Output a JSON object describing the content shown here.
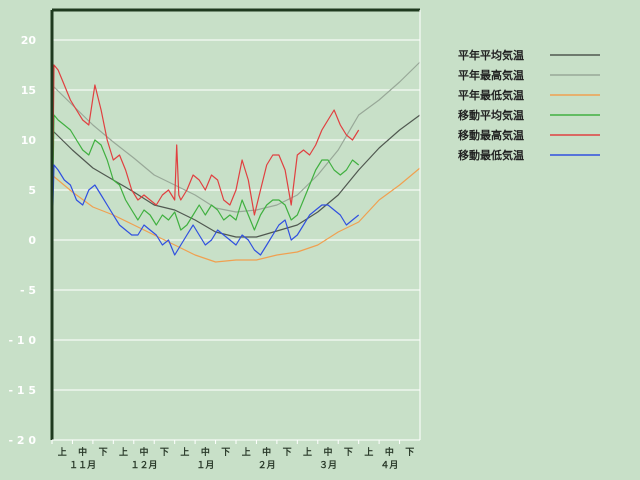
{
  "chart_data": {
    "type": "line",
    "title": "",
    "xlabel": "",
    "ylabel": "",
    "ylim": [
      -20,
      23
    ],
    "y_ticks": [
      20,
      15,
      10,
      5,
      0,
      -5,
      -10,
      -15,
      -20
    ],
    "y_tick_labels": [
      "20",
      "15",
      "10",
      "5",
      "0",
      "- 5",
      "- 1 0",
      "- 1 5",
      "- 2 0"
    ],
    "grid": true,
    "legend_position": "right",
    "x_period_labels": [
      "上",
      "中",
      "下",
      "上",
      "中",
      "下",
      "上",
      "中",
      "下",
      "上",
      "中",
      "下",
      "上",
      "中",
      "下",
      "上",
      "中",
      "下"
    ],
    "x_month_labels": [
      "１１月",
      "１２月",
      "１月",
      "２月",
      "３月",
      "４月"
    ],
    "x_unit": "day index from start of 11月上旬 (0-180)",
    "series": [
      {
        "name": "平年平均気温",
        "color": "#505850",
        "x": [
          0,
          10,
          20,
          30,
          40,
          50,
          60,
          70,
          80,
          90,
          100,
          110,
          120,
          130,
          140,
          150,
          160,
          170,
          180
        ],
        "y": [
          11,
          9,
          7.2,
          6,
          4.8,
          3.5,
          3.0,
          2.0,
          0.8,
          0.3,
          0.3,
          0.9,
          1.5,
          2.8,
          4.5,
          7,
          9.2,
          11,
          12.5
        ]
      },
      {
        "name": "平年最高気温",
        "color": "#98a898",
        "x": [
          0,
          10,
          20,
          30,
          40,
          50,
          60,
          70,
          80,
          90,
          100,
          110,
          120,
          130,
          140,
          150,
          160,
          170,
          180
        ],
        "y": [
          15.5,
          13.5,
          11.5,
          9.8,
          8.2,
          6.5,
          5.5,
          4.5,
          3.2,
          2.8,
          3.0,
          3.5,
          4.5,
          6.5,
          9,
          12.5,
          14,
          15.8,
          17.8
        ]
      },
      {
        "name": "平年最低気温",
        "color": "#f0a050",
        "x": [
          0,
          10,
          20,
          30,
          40,
          50,
          60,
          70,
          80,
          90,
          100,
          110,
          120,
          130,
          140,
          150,
          160,
          170,
          180
        ],
        "y": [
          6.5,
          4.8,
          3.3,
          2.5,
          1.5,
          0.5,
          -0.5,
          -1.5,
          -2.2,
          -2.0,
          -2.0,
          -1.5,
          -1.2,
          -0.5,
          0.8,
          1.8,
          4.0,
          5.5,
          7.2
        ]
      },
      {
        "name": "移動平均気温",
        "color": "#40b040",
        "x": [
          0,
          1,
          3,
          6,
          9,
          12,
          15,
          18,
          21,
          24,
          27,
          30,
          33,
          36,
          39,
          42,
          45,
          48,
          51,
          54,
          57,
          60,
          63,
          66,
          69,
          72,
          75,
          78,
          81,
          84,
          87,
          90,
          93,
          96,
          99,
          102,
          105,
          108,
          111,
          114,
          117,
          120,
          123,
          126,
          129,
          132,
          135,
          138,
          141,
          144,
          147,
          150
        ],
        "y": [
          0,
          12.5,
          12.0,
          11.5,
          11.0,
          10.0,
          9.0,
          8.5,
          10.0,
          9.5,
          8.0,
          6.0,
          5.5,
          4.0,
          3.0,
          2.0,
          3.0,
          2.5,
          1.5,
          2.5,
          2.0,
          2.8,
          1.0,
          1.5,
          2.5,
          3.5,
          2.5,
          3.5,
          3.0,
          2.0,
          2.5,
          2.0,
          4.0,
          2.5,
          1.0,
          2.5,
          3.5,
          4.0,
          4.0,
          3.5,
          2.0,
          2.5,
          4.0,
          5.5,
          7.0,
          8.0,
          8.0,
          7.0,
          6.5,
          7.0,
          8.0,
          7.5
        ]
      },
      {
        "name": "移動最高気温",
        "color": "#e04040",
        "x": [
          0,
          1,
          3,
          6,
          9,
          12,
          15,
          18,
          21,
          24,
          27,
          30,
          33,
          36,
          39,
          42,
          45,
          48,
          51,
          54,
          57,
          60,
          61,
          62,
          63,
          66,
          69,
          72,
          75,
          78,
          81,
          84,
          87,
          90,
          93,
          96,
          99,
          102,
          105,
          108,
          111,
          114,
          117,
          120,
          123,
          126,
          129,
          132,
          135,
          138,
          141,
          144,
          147,
          150
        ],
        "y": [
          0,
          17.5,
          17.0,
          15.5,
          14.0,
          13.0,
          12.0,
          11.5,
          15.5,
          13.0,
          10.0,
          8.0,
          8.5,
          7.0,
          5.0,
          4.0,
          4.5,
          4.0,
          3.5,
          4.5,
          5.0,
          4.0,
          9.5,
          4.5,
          4.0,
          5.0,
          6.5,
          6.0,
          5.0,
          6.5,
          6.0,
          4.0,
          3.5,
          5.0,
          8.0,
          6.0,
          2.5,
          5.0,
          7.5,
          8.5,
          8.5,
          7.0,
          3.5,
          8.5,
          9.0,
          8.5,
          9.5,
          11.0,
          12.0,
          13.0,
          11.5,
          10.5,
          10.0,
          11.0
        ]
      },
      {
        "name": "移動最低気温",
        "color": "#3050e0",
        "x": [
          0,
          1,
          3,
          6,
          9,
          12,
          15,
          18,
          21,
          24,
          27,
          30,
          33,
          36,
          39,
          42,
          45,
          48,
          51,
          54,
          57,
          60,
          63,
          66,
          69,
          72,
          75,
          78,
          81,
          84,
          87,
          90,
          93,
          96,
          99,
          102,
          105,
          108,
          111,
          114,
          117,
          120,
          123,
          126,
          129,
          132,
          135,
          138,
          141,
          144,
          147,
          150
        ],
        "y": [
          0,
          7.5,
          7.0,
          6.0,
          5.5,
          4.0,
          3.5,
          5.0,
          5.5,
          4.5,
          3.5,
          2.5,
          1.5,
          1.0,
          0.5,
          0.5,
          1.5,
          1.0,
          0.5,
          -0.5,
          0.0,
          -1.5,
          -0.5,
          0.5,
          1.5,
          0.5,
          -0.5,
          0.0,
          1.0,
          0.5,
          0.0,
          -0.5,
          0.5,
          0.0,
          -1.0,
          -1.5,
          -0.5,
          0.5,
          1.5,
          2.0,
          0.0,
          0.5,
          1.5,
          2.5,
          3.0,
          3.5,
          3.5,
          3.0,
          2.5,
          1.5,
          2.0,
          2.5
        ]
      }
    ]
  }
}
